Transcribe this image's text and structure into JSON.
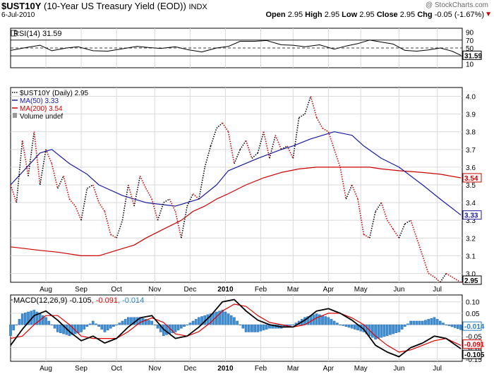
{
  "header": {
    "symbol": "$UST10Y",
    "name": "(10-Year US Treasury Yield (EOD))",
    "exchange": "INDX",
    "date": "6-Jul-2010",
    "copyright": "@ StockCharts.com",
    "ohlc": {
      "open_label": "Open",
      "open": "2.95",
      "high_label": "High",
      "high": "2.95",
      "low_label": "Low",
      "low": "2.95",
      "close_label": "Close",
      "close": "2.95",
      "chg_label": "Chg",
      "chg": "-0.05 (-1.67%)"
    },
    "chg_arrow": "▼"
  },
  "colors": {
    "price": "#000000",
    "ma50": "#1a1aa0",
    "ma200": "#cc0000",
    "rsi": "#000000",
    "macd": "#000000",
    "signal": "#dd0000",
    "histogram": "#3d8fd6",
    "hist_stroke": "#1f5f9f",
    "grid": "#d9d9d9",
    "frame": "#000000"
  },
  "chart_data": [
    {
      "type": "line",
      "panel": "rsi",
      "legend": "RSI(14) 31.59",
      "ylim": [
        0,
        100
      ],
      "yticks": [
        10,
        30,
        50,
        70,
        90
      ],
      "reference_lines": [
        30,
        50,
        70
      ],
      "last_value": "31.59",
      "series": [
        {
          "name": "RSI(14)",
          "x": [
            0,
            6,
            10,
            14,
            19,
            23,
            28,
            33,
            38,
            43,
            47,
            51,
            56,
            60,
            65,
            70,
            74,
            78,
            83,
            87,
            92,
            96,
            100,
            105,
            110,
            114,
            118,
            122,
            126,
            130,
            134,
            138,
            142,
            146,
            150,
            153
          ],
          "values": [
            44,
            52,
            57,
            43,
            50,
            53,
            43,
            42,
            48,
            54,
            51,
            49,
            53,
            46,
            40,
            50,
            54,
            67,
            67,
            69,
            58,
            57,
            53,
            58,
            47,
            55,
            61,
            70,
            65,
            60,
            44,
            42,
            45,
            50,
            42,
            31.59
          ]
        }
      ]
    },
    {
      "type": "line",
      "panel": "price",
      "title": "$UST10Y (Daily) 2.95",
      "ylim": [
        2.95,
        4.05
      ],
      "yticks": [
        3.0,
        3.1,
        3.2,
        3.3,
        3.4,
        3.5,
        3.6,
        3.7,
        3.8,
        3.9,
        4.0
      ],
      "x_ticks": [
        {
          "label": "Aug",
          "x": 12
        },
        {
          "label": "Sep",
          "x": 24
        },
        {
          "label": "Oct",
          "x": 36
        },
        {
          "label": "Nov",
          "x": 49
        },
        {
          "label": "Dec",
          "x": 61
        },
        {
          "label": "2010",
          "x": 73,
          "bold": true
        },
        {
          "label": "Feb",
          "x": 85
        },
        {
          "label": "Mar",
          "x": 96
        },
        {
          "label": "Apr",
          "x": 108
        },
        {
          "label": "May",
          "x": 119
        },
        {
          "label": "Jun",
          "x": 132
        },
        {
          "label": "Jul",
          "x": 145
        }
      ],
      "x_domain": [
        0,
        153
      ],
      "series": [
        {
          "name": "$UST10Y (Daily) 2.95",
          "style": "dotted",
          "x": [
            0,
            2,
            4,
            6,
            8,
            10,
            12,
            14,
            16,
            18,
            20,
            22,
            24,
            26,
            28,
            30,
            32,
            34,
            36,
            38,
            40,
            42,
            44,
            46,
            48,
            50,
            52,
            54,
            56,
            58,
            60,
            62,
            64,
            66,
            68,
            70,
            72,
            74,
            76,
            78,
            80,
            82,
            84,
            86,
            88,
            90,
            92,
            94,
            96,
            98,
            100,
            102,
            104,
            106,
            108,
            110,
            112,
            114,
            116,
            118,
            120,
            122,
            124,
            126,
            128,
            130,
            132,
            134,
            136,
            138,
            140,
            142,
            144,
            146,
            148,
            150,
            153
          ],
          "values": [
            3.5,
            3.4,
            3.75,
            3.55,
            3.8,
            3.5,
            3.7,
            3.62,
            3.48,
            3.55,
            3.42,
            3.38,
            3.3,
            3.48,
            3.5,
            3.4,
            3.35,
            3.22,
            3.2,
            3.3,
            3.5,
            3.38,
            3.55,
            3.48,
            3.42,
            3.3,
            3.4,
            3.42,
            3.35,
            3.2,
            3.38,
            3.45,
            3.42,
            3.6,
            3.72,
            3.82,
            3.85,
            3.8,
            3.62,
            3.7,
            3.75,
            3.65,
            3.68,
            3.8,
            3.65,
            3.78,
            3.7,
            3.72,
            3.65,
            3.88,
            3.9,
            4.0,
            3.88,
            3.82,
            3.8,
            3.7,
            3.6,
            3.42,
            3.5,
            3.42,
            3.22,
            3.2,
            3.35,
            3.4,
            3.3,
            3.25,
            3.2,
            3.28,
            3.3,
            3.2,
            3.1,
            3.0,
            2.98,
            2.95,
            3.0,
            2.98,
            2.95
          ]
        },
        {
          "name": "MA(50) 3.33",
          "x": [
            0,
            10,
            14,
            20,
            26,
            30,
            38,
            46,
            56,
            64,
            70,
            74,
            84,
            92,
            96,
            102,
            110,
            116,
            120,
            126,
            132,
            140,
            146,
            153
          ],
          "values": [
            3.5,
            3.68,
            3.7,
            3.62,
            3.56,
            3.5,
            3.44,
            3.4,
            3.38,
            3.42,
            3.5,
            3.58,
            3.65,
            3.7,
            3.72,
            3.76,
            3.8,
            3.78,
            3.72,
            3.65,
            3.6,
            3.5,
            3.42,
            3.33
          ]
        },
        {
          "name": "MA(200) 3.54",
          "x": [
            0,
            10,
            16,
            24,
            30,
            36,
            42,
            46,
            52,
            58,
            62,
            66,
            70,
            74,
            80,
            86,
            92,
            98,
            104,
            110,
            116,
            122,
            126,
            132,
            140,
            146,
            153
          ],
          "values": [
            3.15,
            3.13,
            3.12,
            3.1,
            3.1,
            3.13,
            3.16,
            3.2,
            3.25,
            3.3,
            3.35,
            3.38,
            3.42,
            3.45,
            3.5,
            3.54,
            3.57,
            3.59,
            3.6,
            3.6,
            3.6,
            3.6,
            3.59,
            3.58,
            3.57,
            3.56,
            3.54
          ]
        }
      ],
      "last_labels": {
        "ma200": "3.54",
        "ma50": "3.33",
        "price": "2.95"
      },
      "legend_items": [
        "$UST10Y (Daily) 2.95",
        "MA(50) 3.33",
        "MA(200) 3.54",
        "Volume undef"
      ]
    },
    {
      "type": "line",
      "panel": "macd",
      "legend_main": "MACD(12,26,9) -0.105",
      "legend_signal": ", -0.091",
      "legend_hist": ", -0.014",
      "ylim": [
        -0.16,
        0.13
      ],
      "yticks": [
        0.1,
        0.05,
        0.0,
        -0.05,
        -0.1,
        -0.15
      ],
      "ytick_labels": [
        "0.10",
        "0.05",
        "0.00",
        "-0.05",
        "-0.10",
        "-0.15"
      ],
      "last_labels": {
        "histogram": "-0.014",
        "signal": "-0.091",
        "macd": "-0.105"
      },
      "series": [
        {
          "name": "MACD",
          "x": [
            0,
            4,
            8,
            12,
            16,
            20,
            24,
            28,
            32,
            36,
            40,
            44,
            48,
            52,
            56,
            60,
            64,
            68,
            72,
            76,
            80,
            84,
            88,
            92,
            96,
            100,
            104,
            108,
            112,
            116,
            120,
            124,
            128,
            132,
            136,
            140,
            144,
            148,
            153
          ],
          "values": [
            -0.09,
            -0.02,
            0.04,
            0.06,
            0.02,
            -0.03,
            -0.07,
            -0.05,
            -0.08,
            -0.06,
            -0.01,
            0.03,
            0.04,
            -0.02,
            -0.06,
            -0.05,
            -0.01,
            0.04,
            0.1,
            0.11,
            0.06,
            0.02,
            0.0,
            -0.01,
            -0.01,
            0.02,
            0.06,
            0.07,
            0.05,
            0.02,
            -0.02,
            -0.09,
            -0.12,
            -0.14,
            -0.1,
            -0.08,
            -0.05,
            -0.06,
            -0.105
          ]
        },
        {
          "name": "Signal",
          "x": [
            0,
            4,
            8,
            12,
            16,
            20,
            24,
            28,
            32,
            36,
            40,
            44,
            48,
            52,
            56,
            60,
            64,
            68,
            72,
            76,
            80,
            84,
            88,
            92,
            96,
            100,
            104,
            108,
            112,
            116,
            120,
            124,
            128,
            132,
            136,
            140,
            144,
            148,
            153
          ],
          "values": [
            -0.06,
            -0.05,
            0.0,
            0.04,
            0.04,
            0.0,
            -0.05,
            -0.06,
            -0.06,
            -0.06,
            -0.03,
            0.01,
            0.03,
            0.01,
            -0.04,
            -0.05,
            -0.03,
            0.01,
            0.06,
            0.09,
            0.08,
            0.04,
            0.01,
            0.0,
            -0.01,
            0.0,
            0.03,
            0.05,
            0.05,
            0.03,
            0.0,
            -0.05,
            -0.09,
            -0.12,
            -0.11,
            -0.09,
            -0.07,
            -0.06,
            -0.091
          ]
        }
      ]
    }
  ]
}
